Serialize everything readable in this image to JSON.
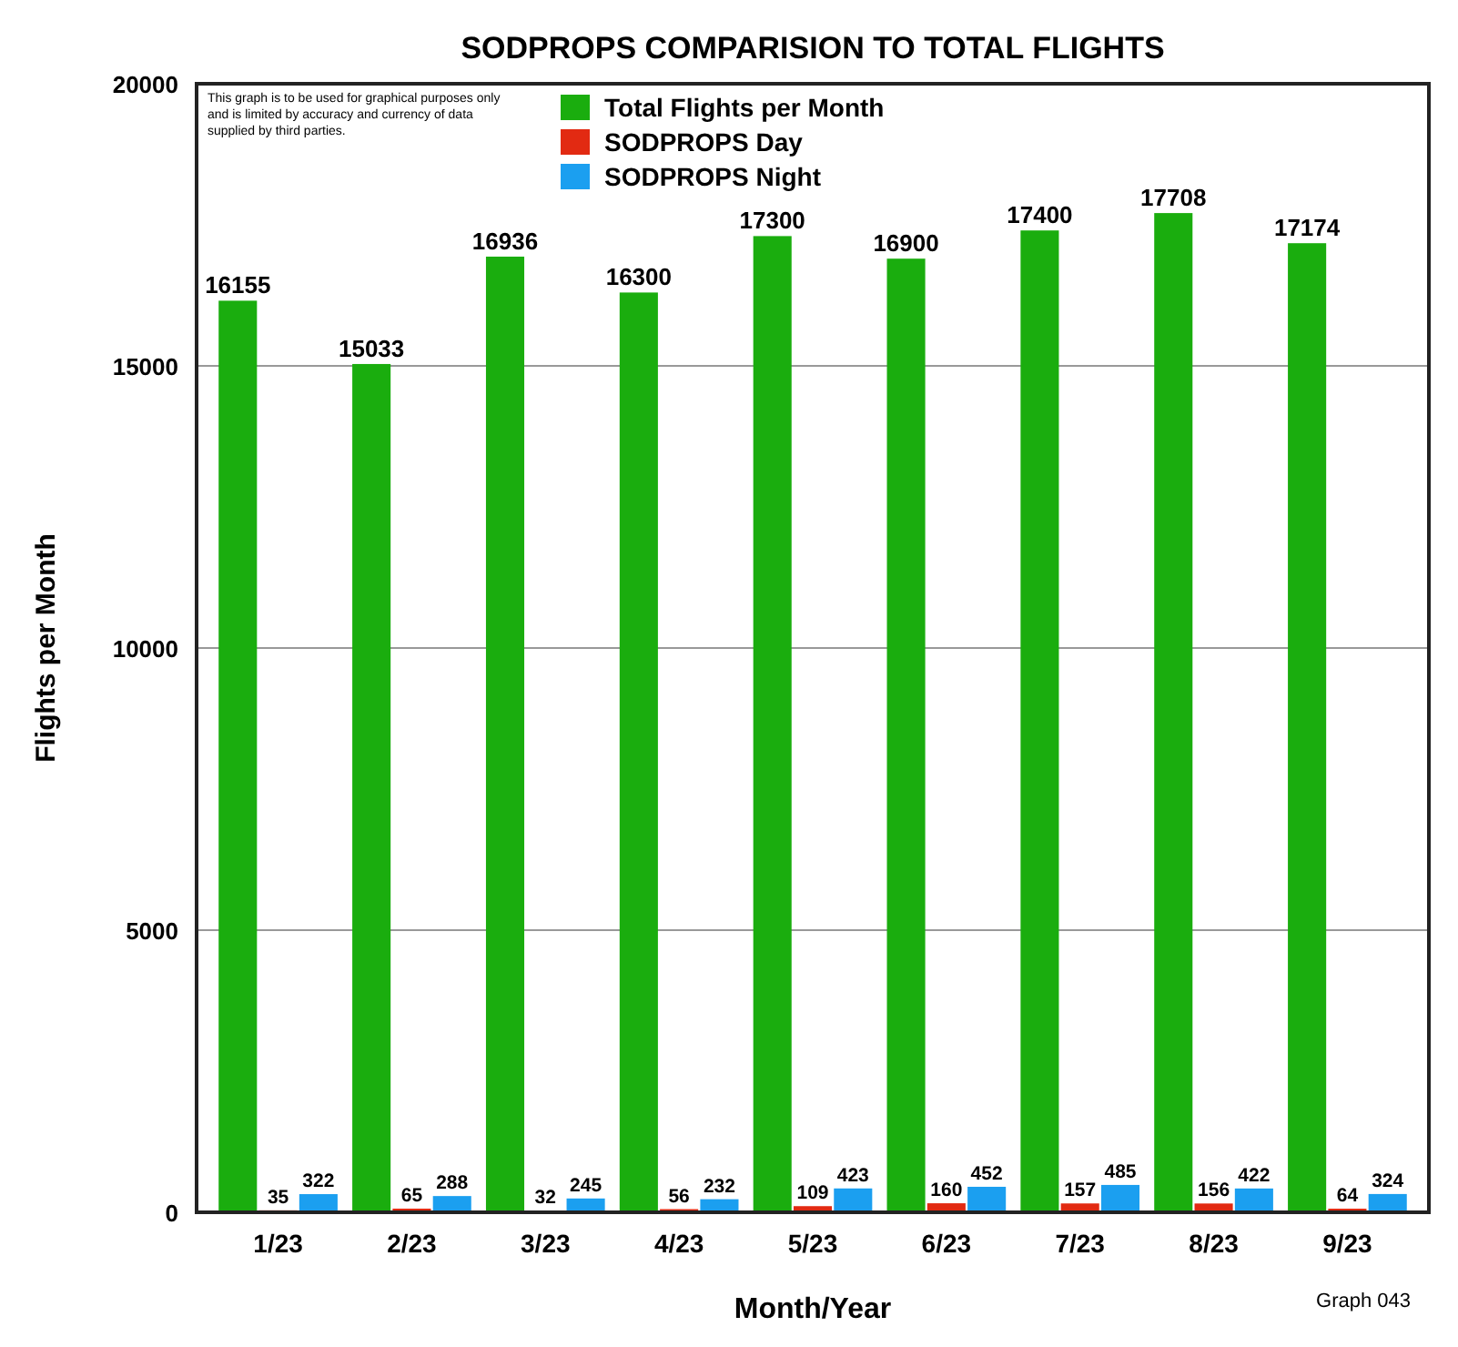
{
  "chart_data": {
    "type": "bar",
    "title": "SODPROPS COMPARISION TO TOTAL FLIGHTS",
    "xlabel": "Month/Year",
    "ylabel": "Flights per Month",
    "categories": [
      "1/23",
      "2/23",
      "3/23",
      "4/23",
      "5/23",
      "6/23",
      "7/23",
      "8/23",
      "9/23"
    ],
    "series": [
      {
        "name": "Total Flights per Month",
        "color": "#1aad0e",
        "values": [
          16155,
          15033,
          16936,
          16300,
          17300,
          16900,
          17400,
          17708,
          17174
        ]
      },
      {
        "name": "SODPROPS Day",
        "color": "#e22a12",
        "values": [
          35,
          65,
          32,
          56,
          109,
          160,
          157,
          156,
          64
        ]
      },
      {
        "name": "SODPROPS Night",
        "color": "#1b9ff0",
        "values": [
          322,
          288,
          245,
          232,
          423,
          452,
          485,
          422,
          324
        ]
      }
    ],
    "ylim": [
      0,
      20000
    ],
    "yticks": [
      0,
      5000,
      10000,
      15000,
      20000
    ],
    "grid": "y",
    "legend": "top",
    "data_labels": true,
    "annotations": [
      "This graph is to be used for graphical purposes only and is limited by accuracy and currency of data supplied by third parties.",
      "Graph 043"
    ]
  }
}
